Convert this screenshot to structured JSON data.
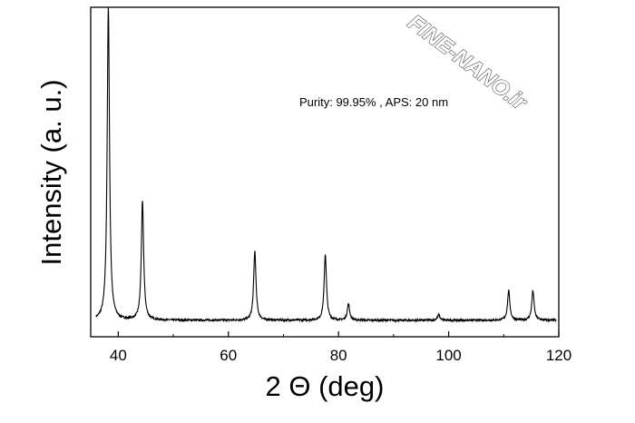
{
  "chart_data": {
    "type": "line",
    "title": "",
    "xlabel": "2 Θ (deg)",
    "ylabel": "Intensity (a. u.)",
    "xlim": [
      35,
      120
    ],
    "ylim": [
      0,
      1
    ],
    "xticks": [
      40,
      60,
      80,
      100,
      120
    ],
    "xtick_labels": [
      "40",
      "60",
      "80",
      "100",
      "120"
    ],
    "yticks_shown": false,
    "grid": false,
    "annotation": "Purity: 99.95% , APS: 20 nm",
    "watermark": "FINE-NANO.ir",
    "series": [
      {
        "baseline": 0.05,
        "peaks": [
          {
            "x": 38.2,
            "y": 1.0
          },
          {
            "x": 44.4,
            "y": 0.41
          },
          {
            "x": 64.8,
            "y": 0.26
          },
          {
            "x": 77.6,
            "y": 0.25
          },
          {
            "x": 81.8,
            "y": 0.1
          },
          {
            "x": 98.2,
            "y": 0.067
          },
          {
            "x": 110.9,
            "y": 0.14
          },
          {
            "x": 115.3,
            "y": 0.14
          }
        ]
      }
    ],
    "colors": {
      "line": "#000000",
      "axes": "#000000",
      "background": "#ffffff"
    }
  }
}
